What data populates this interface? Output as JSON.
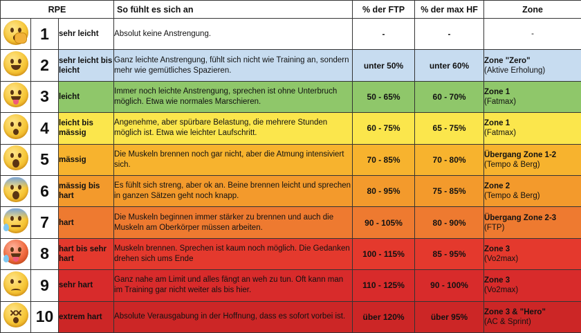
{
  "header": {
    "rpe": "RPE",
    "feeling": "So fühlt es sich an",
    "ftp": "% der FTP",
    "hf": "% der max HF",
    "zone": "Zone"
  },
  "rows": [
    {
      "n": "1",
      "label": "sehr leicht",
      "desc": "Absolut keine Anstrengung.",
      "ftp": "-",
      "hf": "-",
      "zone_title": "-",
      "zone_sub": "",
      "bg": "#ffffff",
      "emoji": "yawning-face-icon"
    },
    {
      "n": "2",
      "label": "sehr leicht bis leicht",
      "desc": "Ganz leichte Anstrengung, fühlt sich nicht wie Training an, sondern mehr wie gemütliches Spazieren.",
      "ftp": "unter 50%",
      "hf": "unter 60%",
      "zone_title": "Zone \"Zero\"",
      "zone_sub": "(Aktive Erholung)",
      "bg": "#c7dcf0",
      "emoji": "grinning-face-icon"
    },
    {
      "n": "3",
      "label": "leicht",
      "desc": "Immer noch leichte Anstrengung, sprechen ist ohne Unterbruch möglich. Etwa wie normales Marschieren.",
      "ftp": "50 - 65%",
      "hf": "60 - 70%",
      "zone_title": "Zone 1",
      "zone_sub": "(Fatmax)",
      "bg": "#8fc76a",
      "emoji": "tongue-face-icon"
    },
    {
      "n": "4",
      "label": "leicht bis mässig",
      "desc": "Angenehme, aber spürbare Belastung, die mehrere Stunden möglich ist. Etwa wie leichter Laufschritt.",
      "ftp": "60 - 75%",
      "hf": "65 - 75%",
      "zone_title": "Zone 1",
      "zone_sub": "(Fatmax)",
      "bg": "#fbe64c",
      "emoji": "hushed-face-icon"
    },
    {
      "n": "5",
      "label": "mässig",
      "desc": "Die Muskeln brennen noch gar nicht, aber die Atmung intensiviert sich.",
      "ftp": "70 - 85%",
      "hf": "70 - 80%",
      "zone_title": "Übergang Zone 1-2",
      "zone_sub": "(Tempo & Berg)",
      "bg": "#f7b32e",
      "emoji": "astonished-face-icon"
    },
    {
      "n": "6",
      "label": "mässig bis hart",
      "desc": "Es fühlt sich streng, aber ok an. Beine brennen leicht und sprechen in ganzen Sätzen geht noch knapp.",
      "ftp": "80 - 95%",
      "hf": "75 - 85%",
      "zone_title": "Zone 2",
      "zone_sub": "(Tempo & Berg)",
      "bg": "#f39a2c",
      "emoji": "fearful-face-icon"
    },
    {
      "n": "7",
      "label": "hart",
      "desc": "Die Muskeln beginnen immer stärker zu brennen und auch die Muskeln am Oberkörper müssen arbeiten.",
      "ftp": "90 - 105%",
      "hf": "80 - 90%",
      "zone_title": "Übergang Zone 2-3",
      "zone_sub": "(FTP)",
      "bg": "#ee7a30",
      "emoji": "anxious-sweat-face-icon"
    },
    {
      "n": "8",
      "label": "hart bis sehr hart",
      "desc": "Muskeln brennen. Sprechen ist kaum noch möglich. Die Gedanken drehen sich ums Ende",
      "ftp": "100 - 115%",
      "hf": "85 - 95%",
      "zone_title": "Zone 3",
      "zone_sub": "(Vo2max)",
      "bg": "#e4392d",
      "emoji": "hot-sweat-face-icon"
    },
    {
      "n": "9",
      "label": "sehr hart",
      "desc": "Ganz nahe am Limit und alles fängt an weh zu tun. Oft kann man im Training gar nicht weiter als bis hier.",
      "ftp": "110 - 125%",
      "hf": "90 - 100%",
      "zone_title": "Zone 3",
      "zone_sub": "(Vo2max)",
      "bg": "#d82b2b",
      "emoji": "woozy-face-icon"
    },
    {
      "n": "10",
      "label": "extrem hart",
      "desc": "Absolute Verausgabung in der Hoffnung, dass es sofort vorbei ist.",
      "ftp": "über 120%",
      "hf": "über 95%",
      "zone_title": "Zone 3 & \"Hero\"",
      "zone_sub": "(AC & Sprint)",
      "bg": "#cc2626",
      "emoji": "dizzy-face-icon"
    }
  ]
}
